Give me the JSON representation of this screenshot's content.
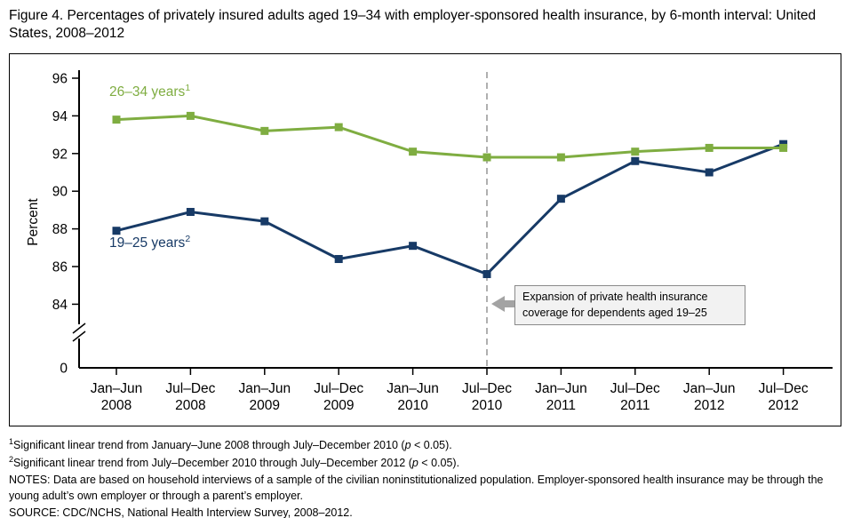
{
  "figure": {
    "title": "Figure 4. Percentages of privately insured adults aged 19–34 with employer-sponsored health insurance, by 6-month interval: United States, 2008–2012"
  },
  "chart_data": {
    "type": "line",
    "title": "Figure 4. Percentages of privately insured adults aged 19–34 with employer-sponsored health insurance, by 6-month interval: United States, 2008–2012",
    "xlabel": "",
    "ylabel": "Percent",
    "yticks": [
      84,
      86,
      88,
      90,
      92,
      94,
      96
    ],
    "ylim": [
      83,
      96.5
    ],
    "zero_label": "0",
    "axis_break": true,
    "grid": false,
    "legend_position": "inline-labels",
    "categories": [
      "Jan–Jun 2008",
      "Jul–Dec 2008",
      "Jan–Jun 2009",
      "Jul–Dec 2009",
      "Jan–Jun 2010",
      "Jul–Dec 2010",
      "Jan–Jun 2011",
      "Jul–Dec 2011",
      "Jan–Jun 2012",
      "Jul–Dec 2012"
    ],
    "series": [
      {
        "key": "26-34",
        "label": "26–34 years",
        "label_sup": "1",
        "color": "#7fad41",
        "marker": "square",
        "values": [
          93.8,
          94.0,
          93.2,
          93.4,
          92.1,
          91.8,
          91.8,
          92.1,
          92.3,
          92.3
        ]
      },
      {
        "key": "19-25",
        "label": "19–25 years",
        "label_sup": "2",
        "color": "#173a66",
        "marker": "square",
        "values": [
          87.9,
          88.9,
          88.4,
          86.4,
          87.1,
          85.6,
          89.6,
          91.6,
          91.0,
          92.5
        ]
      }
    ],
    "reference_line": {
      "category_index": 5,
      "style": "dashed",
      "color": "#b0b0b0"
    },
    "annotation": {
      "text": "Expansion of private health insurance coverage for dependents aged 19–25",
      "arrow_color": "#a3a3a3"
    }
  },
  "footnotes": [
    {
      "sup": "1",
      "text": "Significant linear trend from January–June 2008 through July–December 2010 (p < 0.05)."
    },
    {
      "sup": "2",
      "text": "Significant linear trend from July–December 2010 through July–December 2012 (p < 0.05)."
    },
    {
      "sup": "",
      "text": "NOTES: Data are based on household interviews of a sample of the civilian noninstitutionalized population. Employer-sponsored health insurance may be through the young adult’s own employer or through a parent’s employer."
    },
    {
      "sup": "",
      "text": "SOURCE: CDC/NCHS, National Health Interview Survey, 2008–2012."
    }
  ]
}
